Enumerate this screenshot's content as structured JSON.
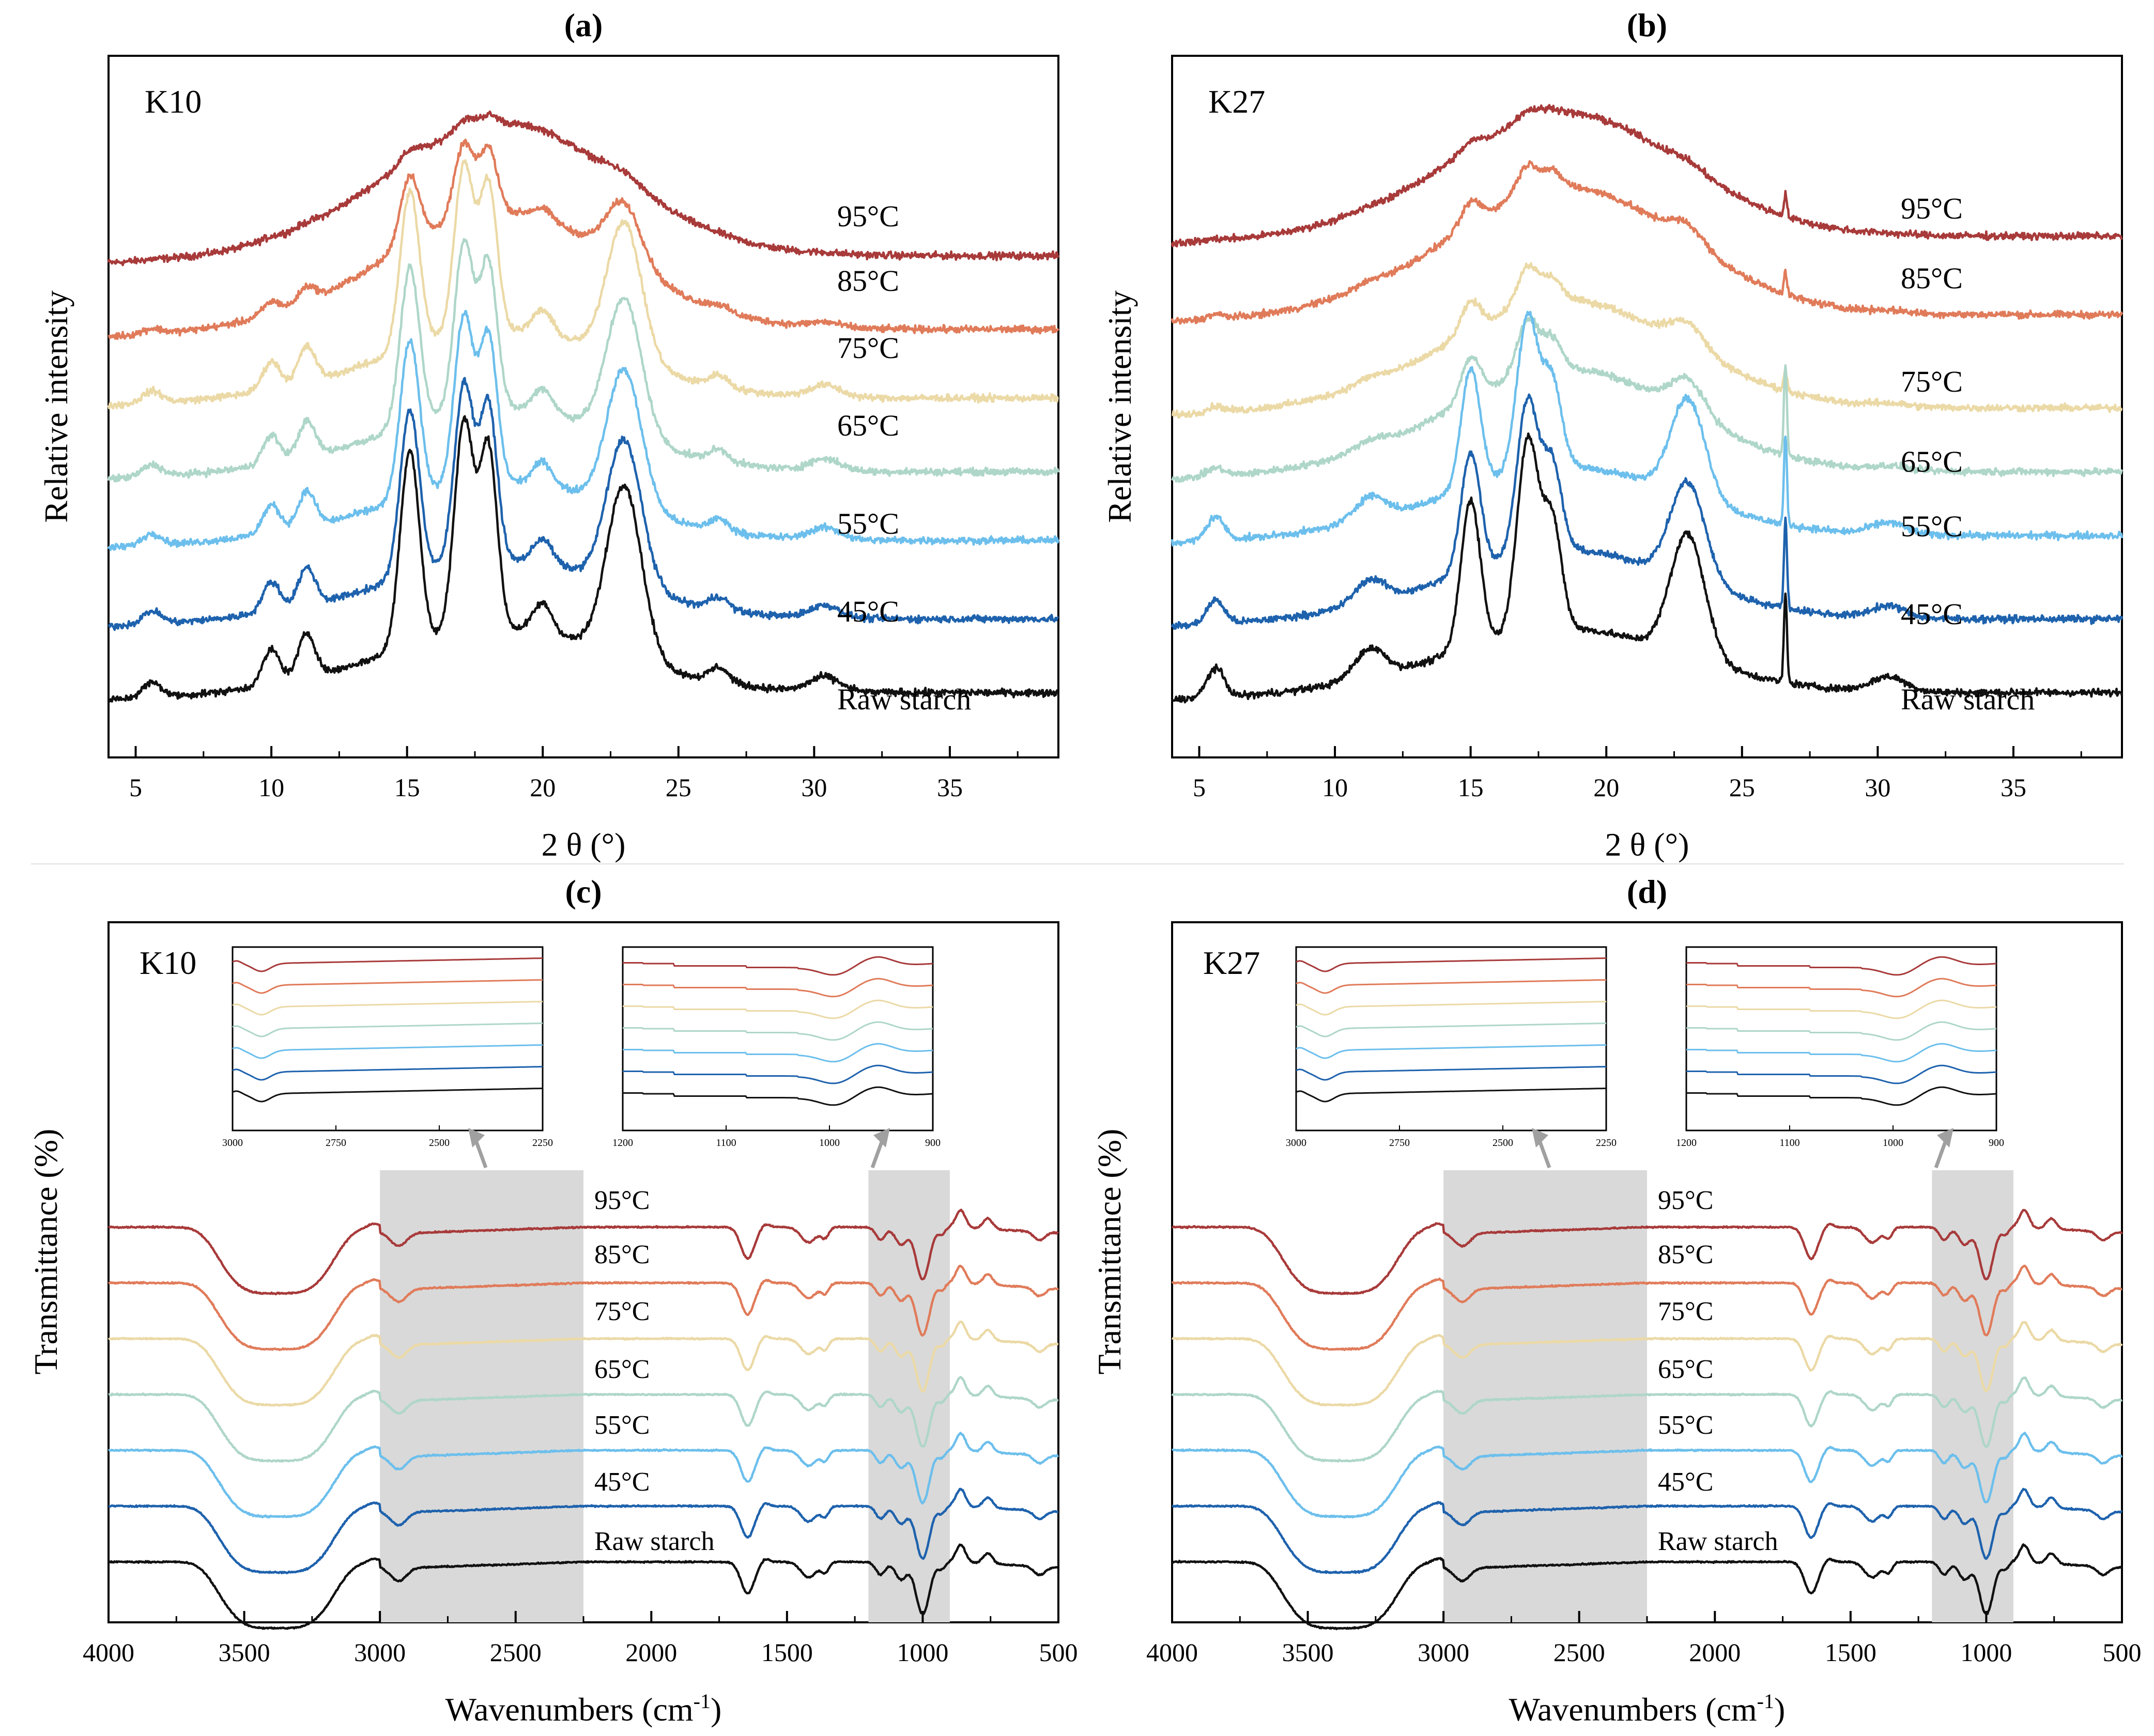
{
  "figure": {
    "panels": [
      "a",
      "b",
      "c",
      "d"
    ]
  },
  "chart_data": [
    {
      "panel_id": "a",
      "type": "line",
      "panel_label": "(a)",
      "sample": "K10",
      "xlabel": "2 θ (°)",
      "ylabel": "Relative intensity",
      "xlim": [
        4,
        39
      ],
      "xticks": [
        5,
        10,
        15,
        20,
        25,
        30,
        35
      ],
      "sample_kind": "k10",
      "peaks": [
        {
          "c": 5.6,
          "w": 0.5,
          "h": 0.3
        },
        {
          "c": 10.0,
          "w": 0.45,
          "h": 0.7
        },
        {
          "c": 11.3,
          "w": 0.45,
          "h": 0.9
        },
        {
          "c": 15.1,
          "w": 0.5,
          "h": 4.0
        },
        {
          "c": 17.1,
          "w": 0.5,
          "h": 4.3
        },
        {
          "c": 18.0,
          "w": 0.45,
          "h": 3.7
        },
        {
          "c": 20.0,
          "w": 0.5,
          "h": 0.6
        },
        {
          "c": 23.0,
          "w": 0.9,
          "h": 3.5
        },
        {
          "c": 26.5,
          "w": 0.5,
          "h": 0.3
        },
        {
          "c": 30.4,
          "w": 0.8,
          "h": 0.3
        }
      ],
      "series": [
        {
          "name": "95°C",
          "label": "95°C",
          "color": "#a83a3a",
          "offset": 9.8,
          "crystallinity": 0.05,
          "amorph": 2.7
        },
        {
          "name": "85°C",
          "label": "85°C",
          "color": "#e07b5a",
          "offset": 8.3,
          "crystallinity": 0.35,
          "amorph": 2.4
        },
        {
          "name": "75°C",
          "label": "75°C",
          "color": "#ebd9a6",
          "offset": 6.9,
          "crystallinity": 0.8,
          "amorph": 1.4
        },
        {
          "name": "65°C",
          "label": "65°C",
          "color": "#aed6c9",
          "offset": 5.4,
          "crystallinity": 0.8,
          "amorph": 1.3
        },
        {
          "name": "55°C",
          "label": "55°C",
          "color": "#6cbfec",
          "offset": 4.0,
          "crystallinity": 0.8,
          "amorph": 1.2
        },
        {
          "name": "45°C",
          "label": "45°C",
          "color": "#1e62ad",
          "offset": 2.4,
          "crystallinity": 0.85,
          "amorph": 1.2
        },
        {
          "name": "Raw starch",
          "label": "Raw starch",
          "color": "#111111",
          "offset": 0.9,
          "crystallinity": 1.0,
          "amorph": 1.3
        }
      ]
    },
    {
      "panel_id": "b",
      "type": "line",
      "panel_label": "(b)",
      "sample": "K27",
      "xlabel": "2 θ (°)",
      "ylabel": "Relative intensity",
      "xlim": [
        4,
        39
      ],
      "xticks": [
        5,
        10,
        15,
        20,
        25,
        30,
        35
      ],
      "sample_kind": "k27",
      "peaks": [
        {
          "c": 5.6,
          "w": 0.45,
          "h": 0.6
        },
        {
          "c": 11.3,
          "w": 0.8,
          "h": 0.6
        },
        {
          "c": 15.0,
          "w": 0.5,
          "h": 3.0
        },
        {
          "c": 17.1,
          "w": 0.55,
          "h": 3.9
        },
        {
          "c": 18.0,
          "w": 0.5,
          "h": 2.2
        },
        {
          "c": 23.0,
          "w": 0.9,
          "h": 2.5
        },
        {
          "c": 26.6,
          "w": 0.08,
          "h": 1.8
        },
        {
          "c": 30.4,
          "w": 0.9,
          "h": 0.3
        }
      ],
      "series": [
        {
          "name": "95°C",
          "label": "95°C",
          "color": "#a83a3a",
          "offset": 10.2,
          "crystallinity": 0.05,
          "amorph": 2.5
        },
        {
          "name": "85°C",
          "label": "85°C",
          "color": "#e07b5a",
          "offset": 8.6,
          "crystallinity": 0.15,
          "amorph": 2.6
        },
        {
          "name": "75°C",
          "label": "75°C",
          "color": "#ebd9a6",
          "offset": 6.7,
          "crystallinity": 0.2,
          "amorph": 2.2
        },
        {
          "name": "65°C",
          "label": "65°C",
          "color": "#aed6c9",
          "offset": 5.4,
          "crystallinity": 0.28,
          "amorph": 2.1
        },
        {
          "name": "55°C",
          "label": "55°C",
          "color": "#6cbfec",
          "offset": 4.1,
          "crystallinity": 0.8,
          "amorph": 1.4
        },
        {
          "name": "45°C",
          "label": "45°C",
          "color": "#1e62ad",
          "offset": 2.4,
          "crystallinity": 0.8,
          "amorph": 1.4
        },
        {
          "name": "Raw starch",
          "label": "Raw starch",
          "color": "#111111",
          "offset": 0.9,
          "crystallinity": 1.0,
          "amorph": 1.3
        }
      ]
    },
    {
      "panel_id": "c",
      "type": "line",
      "panel_label": "(c)",
      "sample": "K10",
      "xlabel": "Wavenumbers (cm",
      "xlabel_sup": "-1",
      "xlabel_end": ")",
      "ylabel": "Transmittance (%)",
      "xlim": [
        4000,
        500
      ],
      "xticks": [
        4000,
        3500,
        3000,
        2500,
        2000,
        1500,
        1000,
        500
      ],
      "highlight_ranges": [
        [
          3000,
          2250
        ],
        [
          1200,
          900
        ]
      ],
      "inset_left": {
        "xlim": [
          3000,
          2250
        ],
        "xticks": [
          3000,
          2750,
          2500,
          2250
        ]
      },
      "inset_right": {
        "xlim": [
          1200,
          900
        ],
        "xticks": [
          1200,
          1100,
          1000,
          900
        ]
      },
      "series": [
        {
          "name": "95°C",
          "label": "95°C",
          "color": "#a83a3a"
        },
        {
          "name": "85°C",
          "label": "85°C",
          "color": "#e07b5a"
        },
        {
          "name": "75°C",
          "label": "75°C",
          "color": "#ebd9a6"
        },
        {
          "name": "65°C",
          "label": "65°C",
          "color": "#aed6c9"
        },
        {
          "name": "55°C",
          "label": "55°C",
          "color": "#6cbfec"
        },
        {
          "name": "45°C",
          "label": "45°C",
          "color": "#1e62ad"
        },
        {
          "name": "Raw starch",
          "label": "Raw starch",
          "color": "#111111"
        }
      ]
    },
    {
      "panel_id": "d",
      "type": "line",
      "panel_label": "(d)",
      "sample": "K27",
      "xlabel": "Wavenumbers (cm",
      "xlabel_sup": "-1",
      "xlabel_end": ")",
      "ylabel": "Transmittance (%)",
      "xlim": [
        4000,
        500
      ],
      "xticks": [
        4000,
        3500,
        3000,
        2500,
        2000,
        1500,
        1000,
        500
      ],
      "highlight_ranges": [
        [
          3000,
          2250
        ],
        [
          1200,
          900
        ]
      ],
      "inset_left": {
        "xlim": [
          3000,
          2250
        ],
        "xticks": [
          3000,
          2750,
          2500,
          2250
        ]
      },
      "inset_right": {
        "xlim": [
          1200,
          900
        ],
        "xticks": [
          1200,
          1100,
          1000,
          900
        ]
      },
      "series": [
        {
          "name": "95°C",
          "label": "95°C",
          "color": "#a83a3a"
        },
        {
          "name": "85°C",
          "label": "85°C",
          "color": "#e07b5a"
        },
        {
          "name": "75°C",
          "label": "75°C",
          "color": "#ebd9a6"
        },
        {
          "name": "65°C",
          "label": "65°C",
          "color": "#aed6c9"
        },
        {
          "name": "55°C",
          "label": "55°C",
          "color": "#6cbfec"
        },
        {
          "name": "45°C",
          "label": "45°C",
          "color": "#1e62ad"
        },
        {
          "name": "Raw starch",
          "label": "Raw starch",
          "color": "#111111"
        }
      ]
    }
  ]
}
